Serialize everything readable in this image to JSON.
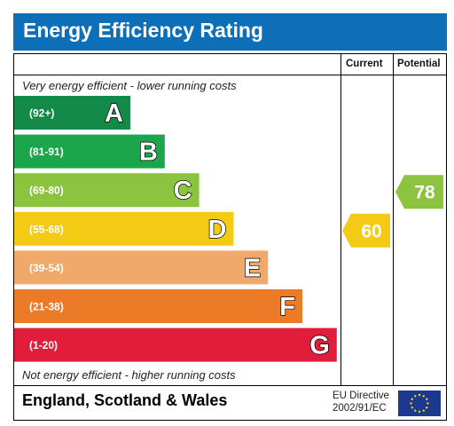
{
  "header": {
    "title": "Energy Efficiency Rating"
  },
  "columns": {
    "current": "Current",
    "potential": "Potential"
  },
  "notes": {
    "top": "Very energy efficient - lower running costs",
    "bottom": "Not energy efficient - higher running costs"
  },
  "footer": {
    "country": "England, Scotland & Wales",
    "directive_line1": "EU Directive",
    "directive_line2": "2002/91/EC"
  },
  "chart_data": {
    "type": "bar",
    "bands": [
      {
        "letter": "A",
        "range": "(92+)",
        "color": "#138a47"
      },
      {
        "letter": "B",
        "range": "(81-91)",
        "color": "#1ca64c"
      },
      {
        "letter": "C",
        "range": "(69-80)",
        "color": "#8cc43f"
      },
      {
        "letter": "D",
        "range": "(55-68)",
        "color": "#f4cb14"
      },
      {
        "letter": "E",
        "range": "(39-54)",
        "color": "#f1a86b"
      },
      {
        "letter": "F",
        "range": "(21-38)",
        "color": "#ec7b27"
      },
      {
        "letter": "G",
        "range": "(1-20)",
        "color": "#e21c3b"
      }
    ],
    "current": {
      "value": 60,
      "band": "D",
      "color": "#f4cb14"
    },
    "potential": {
      "value": 78,
      "band": "C",
      "color": "#8cc43f"
    }
  }
}
